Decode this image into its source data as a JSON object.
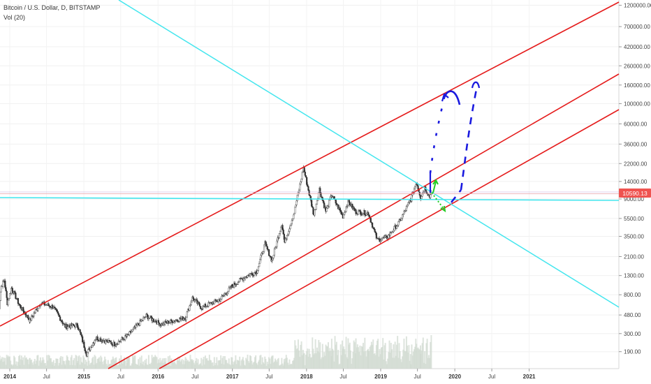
{
  "header": {
    "symbol_line": "Bitcoin / U.S. Dollar, D, BITSTAMP",
    "volume_line": "Vol (20)"
  },
  "price_badge": {
    "text": "10590.13",
    "color": "#ef5350"
  },
  "colors": {
    "channel": "#e51c1c",
    "cyan": "#44e6ee",
    "arrows_blue": "#1a1adf",
    "arrow_green": "#22cc22",
    "candles": "#333333",
    "volume": "#cfd8cf"
  },
  "chart_data": {
    "type": "candlestick",
    "title": "Bitcoin / U.S. Dollar, D, BITSTAMP",
    "indicator": "Vol (20)",
    "y_scale": "log",
    "ylim": [
      170,
      1300000
    ],
    "y_ticks": [
      "1200000.00",
      "700000.00",
      "420000.00",
      "260000.00",
      "160000.00",
      "100000.00",
      "60000.00",
      "36000.00",
      "22000.00",
      "14000.00",
      "9000.00",
      "5500.00",
      "3500.00",
      "2100.00",
      "1300.00",
      "800.00",
      "480.00",
      "300.00",
      "190.00"
    ],
    "x_ticks": [
      "2014",
      "Jul",
      "2015",
      "Jul",
      "2016",
      "Jul",
      "2017",
      "Jul",
      "2018",
      "Jul",
      "2019",
      "Jul",
      "2020",
      "Jul",
      "2021"
    ],
    "xlim": [
      "2013-11",
      "2022-01"
    ],
    "last_price": 10590.13,
    "price_path": [
      [
        "2013-11-01",
        400
      ],
      [
        "2013-11-20",
        1000
      ],
      [
        "2013-12-05",
        1150
      ],
      [
        "2013-12-20",
        650
      ],
      [
        "2014-01-10",
        950
      ],
      [
        "2014-02-20",
        600
      ],
      [
        "2014-04-10",
        420
      ],
      [
        "2014-06-01",
        650
      ],
      [
        "2014-08-01",
        590
      ],
      [
        "2014-10-01",
        360
      ],
      [
        "2014-12-01",
        370
      ],
      [
        "2015-01-14",
        180
      ],
      [
        "2015-03-01",
        270
      ],
      [
        "2015-06-01",
        230
      ],
      [
        "2015-08-01",
        280
      ],
      [
        "2015-11-04",
        470
      ],
      [
        "2016-01-15",
        380
      ],
      [
        "2016-05-15",
        450
      ],
      [
        "2016-06-18",
        740
      ],
      [
        "2016-08-01",
        580
      ],
      [
        "2016-11-01",
        710
      ],
      [
        "2017-01-01",
        1000
      ],
      [
        "2017-03-01",
        1250
      ],
      [
        "2017-05-01",
        1450
      ],
      [
        "2017-06-10",
        2900
      ],
      [
        "2017-07-15",
        1900
      ],
      [
        "2017-09-01",
        4900
      ],
      [
        "2017-09-15",
        3000
      ],
      [
        "2017-11-01",
        6400
      ],
      [
        "2017-12-17",
        19700
      ],
      [
        "2018-02-06",
        6000
      ],
      [
        "2018-03-05",
        11500
      ],
      [
        "2018-04-06",
        6600
      ],
      [
        "2018-05-05",
        9900
      ],
      [
        "2018-06-29",
        5800
      ],
      [
        "2018-07-25",
        8400
      ],
      [
        "2018-09-01",
        6500
      ],
      [
        "2018-11-01",
        6300
      ],
      [
        "2018-12-15",
        3200
      ],
      [
        "2019-02-01",
        3400
      ],
      [
        "2019-04-02",
        5000
      ],
      [
        "2019-05-30",
        9000
      ],
      [
        "2019-06-26",
        13800
      ],
      [
        "2019-07-17",
        9400
      ],
      [
        "2019-08-06",
        12000
      ],
      [
        "2019-08-30",
        9500
      ],
      [
        "2019-09-07",
        10590
      ]
    ],
    "channel_lines": [
      {
        "name": "upper",
        "color": "#e51c1c"
      },
      {
        "name": "middle",
        "color": "#e51c1c"
      },
      {
        "name": "lower",
        "color": "#e51c1c"
      }
    ],
    "horizontal_levels": [
      10590.13,
      8600
    ],
    "annotations": [
      "dashed blue projection arrows to ~140000 and ~170000",
      "green arrows near current price"
    ]
  }
}
